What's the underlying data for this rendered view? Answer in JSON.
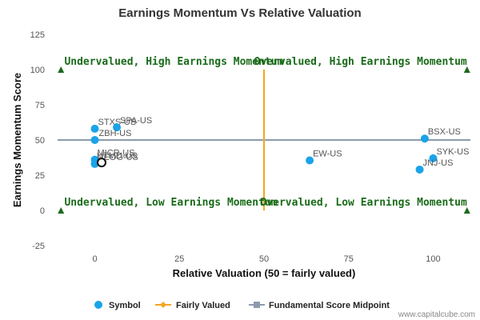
{
  "chart_data": {
    "type": "scatter",
    "title": "Earnings Momentum Vs Relative Valuation",
    "xlabel": "Relative Valuation (50 = fairly valued)",
    "ylabel": "Earnings Momentum Score",
    "xlim": [
      -11,
      111
    ],
    "ylim": [
      -25,
      125
    ],
    "x_ticks": [
      "0",
      "25",
      "50",
      "75",
      "100"
    ],
    "y_ticks": [
      "-25",
      "0",
      "25",
      "50",
      "75",
      "100",
      "125"
    ],
    "grid": false,
    "legend_position": "bottom",
    "quadrant_labels": {
      "top_left": "Undervalued, High Earnings Momentum",
      "top_right": "Overvalued, High Earnings Momentum",
      "bottom_left": "Undervalued, Low Earnings Momentum",
      "bottom_right": "Overvalued, Low Earnings Momentum"
    },
    "series": [
      {
        "name": "Symbol",
        "color": "#1aa3e8",
        "points": [
          {
            "label": "STXS-US",
            "x": 0,
            "y": 58
          },
          {
            "label": "SPA-US",
            "x": 6.5,
            "y": 59
          },
          {
            "label": "ZBH-US",
            "x": 0,
            "y": 50
          },
          {
            "label": "MICR-US",
            "x": 0,
            "y": 36
          },
          {
            "label": "NEOG-US",
            "x": 0,
            "y": 33
          },
          {
            "label": "UTMD-US",
            "x": 2,
            "y": 34,
            "highlight": true
          },
          {
            "label": "EW-US",
            "x": 63.5,
            "y": 35.5
          },
          {
            "label": "BSX-US",
            "x": 97.5,
            "y": 51
          },
          {
            "label": "SYK-US",
            "x": 100,
            "y": 37
          },
          {
            "label": "JNJ-US",
            "x": 96,
            "y": 29
          }
        ]
      },
      {
        "name": "Fairly Valued",
        "color": "#f5a623",
        "x": 50,
        "y_range": [
          0,
          100
        ]
      },
      {
        "name": "Fundamental Score Midpoint",
        "color": "#8c9bab",
        "y": 50,
        "x_range": [
          -11,
          111
        ]
      }
    ],
    "markers": [
      {
        "x": -10,
        "y": 100
      },
      {
        "x": 110,
        "y": 100
      },
      {
        "x": -10,
        "y": 0
      },
      {
        "x": 110,
        "y": 0
      }
    ]
  },
  "credit": "www.capitalcube.com"
}
